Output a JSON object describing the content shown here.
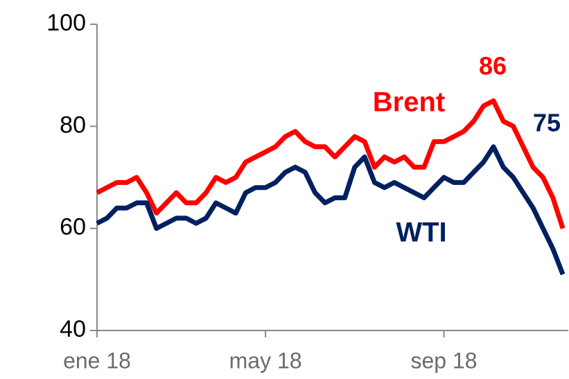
{
  "chart_data": {
    "type": "line",
    "categories": [
      "ene 18",
      null,
      null,
      null,
      null,
      null,
      null,
      null,
      null,
      null,
      null,
      null,
      null,
      null,
      null,
      null,
      null,
      "may 18",
      null,
      null,
      null,
      null,
      null,
      null,
      null,
      null,
      null,
      null,
      null,
      null,
      null,
      null,
      null,
      null,
      null,
      "sep 18",
      null,
      null,
      null,
      null,
      null,
      null,
      null,
      null,
      null,
      null,
      null,
      null
    ],
    "series": [
      {
        "name": "Brent",
        "color": "#ff0000",
        "values": [
          67,
          68,
          69,
          69,
          70,
          67,
          63,
          65,
          67,
          65,
          65,
          67,
          70,
          69,
          70,
          73,
          74,
          75,
          76,
          78,
          79,
          77,
          76,
          76,
          74,
          76,
          78,
          77,
          72,
          74,
          73,
          74,
          72,
          72,
          77,
          77,
          78,
          79,
          81,
          84,
          85,
          81,
          80,
          76,
          72,
          70,
          66,
          60
        ]
      },
      {
        "name": "WTI",
        "color": "#002060",
        "values": [
          61,
          62,
          64,
          64,
          65,
          65,
          60,
          61,
          62,
          62,
          61,
          62,
          65,
          64,
          63,
          67,
          68,
          68,
          69,
          71,
          72,
          71,
          67,
          65,
          66,
          66,
          72,
          74,
          69,
          68,
          69,
          68,
          67,
          66,
          68,
          70,
          69,
          69,
          71,
          73,
          76,
          72,
          70,
          67,
          64,
          60,
          56,
          51
        ]
      }
    ],
    "annotations": [
      "86",
      "75"
    ],
    "ylim": [
      40,
      100
    ],
    "yticks": [
      40,
      60,
      80,
      100
    ]
  }
}
